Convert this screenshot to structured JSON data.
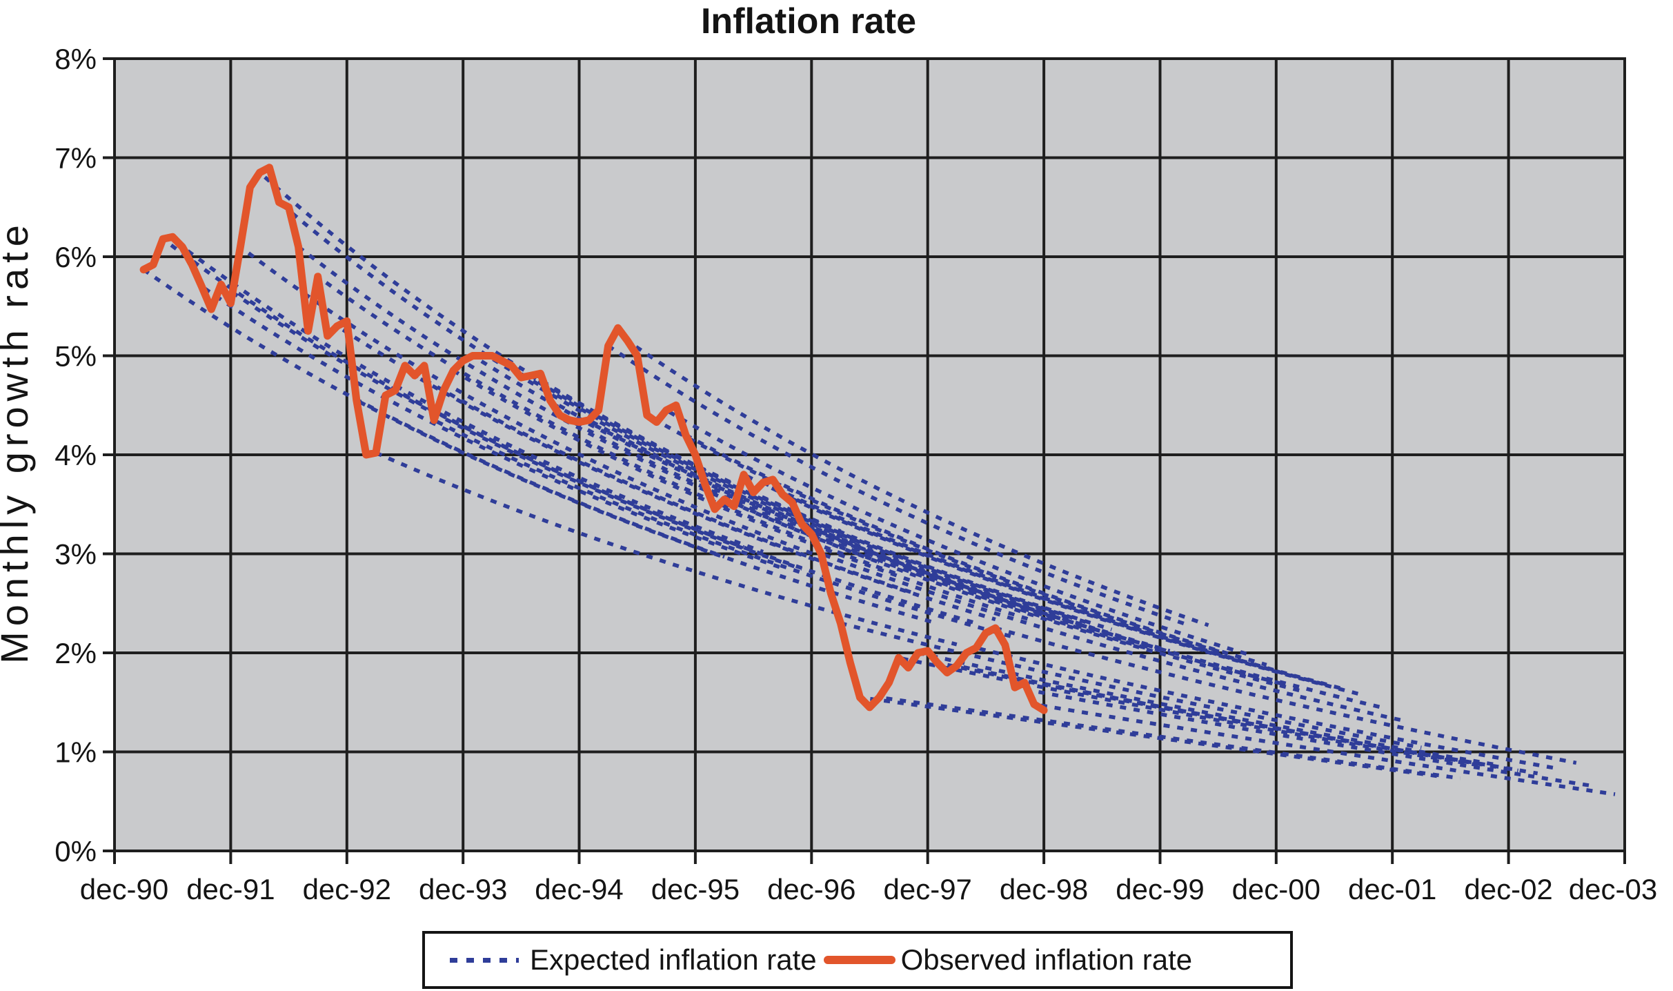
{
  "chart_data": {
    "type": "line",
    "title": "Inflation rate",
    "ylabel": "Monthly growth rate",
    "xlabel": "",
    "grid": true,
    "legend_position": "bottom",
    "ylim": [
      0,
      8
    ],
    "y_tick_labels": [
      "0%",
      "1%",
      "2%",
      "3%",
      "4%",
      "5%",
      "6%",
      "7%",
      "8%"
    ],
    "x_tick_labels": [
      "dec-90",
      "dec-91",
      "dec-92",
      "dec-93",
      "dec-94",
      "dec-95",
      "dec-96",
      "dec-97",
      "dec-98",
      "dec-99",
      "dec-00",
      "dec-01",
      "dec-02",
      "dec-03"
    ],
    "x_months_total": 156,
    "series": [
      {
        "name": "Observed inflation rate",
        "style": "solid",
        "color": "#E2552B",
        "months_after_dec90": [
          3,
          4,
          5,
          6,
          7,
          8,
          9,
          10,
          11,
          12,
          13,
          14,
          15,
          16,
          17,
          18,
          19,
          20,
          21,
          22,
          23,
          24,
          25,
          26,
          27,
          28,
          29,
          30,
          31,
          32,
          33,
          34,
          35,
          36,
          37,
          38,
          39,
          40,
          41,
          42,
          43,
          44,
          45,
          46,
          47,
          48,
          49,
          50,
          51,
          52,
          53,
          54,
          55,
          56,
          57,
          58,
          59,
          60,
          61,
          62,
          63,
          64,
          65,
          66,
          67,
          68,
          69,
          70,
          71,
          72,
          73,
          74,
          75,
          76,
          77,
          78,
          79,
          80,
          81,
          82,
          83,
          84,
          85,
          86,
          87,
          88,
          89,
          90,
          91,
          92,
          93,
          94,
          95,
          96
        ],
        "values_pct": [
          5.87,
          5.92,
          6.18,
          6.2,
          6.1,
          5.92,
          5.7,
          5.47,
          5.72,
          5.53,
          6.1,
          6.7,
          6.85,
          6.9,
          6.55,
          6.5,
          6.1,
          5.25,
          5.8,
          5.2,
          5.3,
          5.35,
          4.55,
          4.0,
          4.02,
          4.6,
          4.65,
          4.9,
          4.8,
          4.9,
          4.35,
          4.65,
          4.85,
          4.95,
          5.0,
          5.0,
          5.0,
          4.95,
          4.9,
          4.78,
          4.8,
          4.82,
          4.55,
          4.4,
          4.35,
          4.33,
          4.35,
          4.45,
          5.1,
          5.28,
          5.15,
          5.0,
          4.4,
          4.33,
          4.45,
          4.5,
          4.2,
          4.0,
          3.7,
          3.45,
          3.55,
          3.48,
          3.8,
          3.62,
          3.72,
          3.75,
          3.6,
          3.52,
          3.3,
          3.2,
          3.0,
          2.6,
          2.3,
          1.9,
          1.55,
          1.45,
          1.55,
          1.7,
          1.95,
          1.85,
          2.0,
          2.02,
          1.9,
          1.8,
          1.87,
          2.0,
          2.05,
          2.2,
          2.25,
          2.08,
          1.65,
          1.7,
          1.48,
          1.42
        ]
      },
      {
        "name": "Expected inflation rate",
        "style": "dotted",
        "color": "#2F3D99",
        "description": "Fan of monthly forecast paths: each curve starts on the observed series and decays toward a slowly declining long-run level, converging to about 0.5-1% by dec-03",
        "fan_model": {
          "start_month": 3,
          "end_month": 95,
          "start_step_months": 2,
          "horizon_months": 60,
          "decay_tau_months": 60,
          "longrun_pct_at_dec90": 2.6,
          "longrun_pct_at_dec03": 0.5
        }
      }
    ]
  },
  "legend": {
    "expected_label": "Expected inflation rate",
    "observed_label": "Observed inflation rate"
  },
  "colors": {
    "page_bg": "#FFFFFF",
    "plot_bg": "#C9CACC",
    "grid": "#1E1E1E",
    "frame": "#1E1E1E",
    "text": "#141414",
    "observed": "#E2552B",
    "expected": "#2F3D99"
  }
}
